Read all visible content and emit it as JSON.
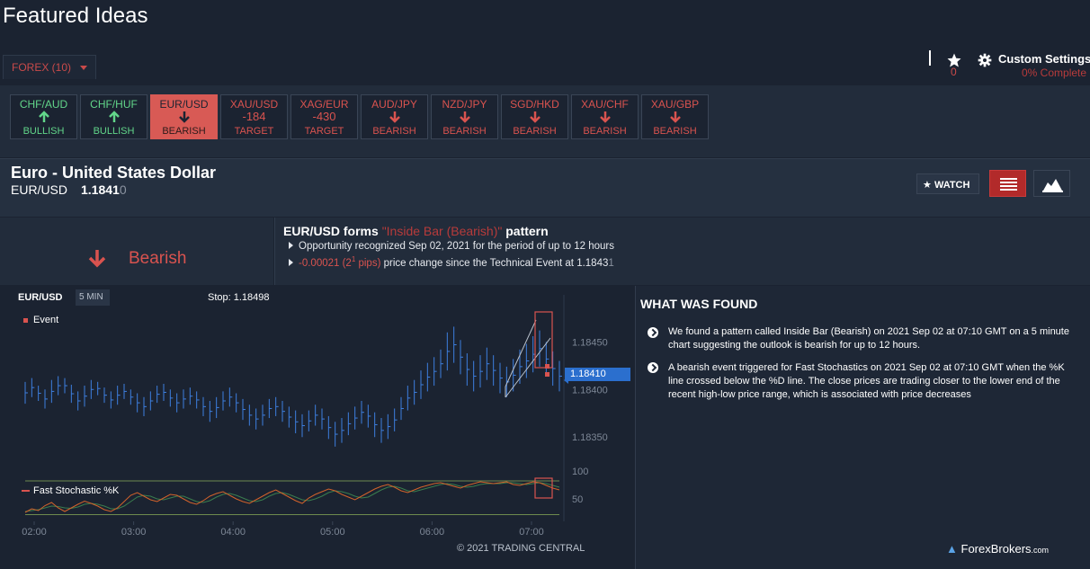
{
  "page": {
    "title": "Featured Ideas"
  },
  "filter": {
    "label": "FOREX (10)"
  },
  "header": {
    "favorites_count": "0",
    "custom_settings_label": "Custom Settings",
    "custom_settings_progress": "0% Complete"
  },
  "tabs": [
    {
      "name": "CHF/AUD",
      "mid": "",
      "label": "BULLISH",
      "dir": "up",
      "kind": "bull"
    },
    {
      "name": "CHF/HUF",
      "mid": "",
      "label": "BULLISH",
      "dir": "up",
      "kind": "bull"
    },
    {
      "name": "EUR/USD",
      "mid": "",
      "label": "BEARISH",
      "dir": "down",
      "kind": "active"
    },
    {
      "name": "XAU/USD",
      "mid": "-184",
      "label": "TARGET",
      "dir": "",
      "kind": "bear"
    },
    {
      "name": "XAG/EUR",
      "mid": "-430",
      "label": "TARGET",
      "dir": "",
      "kind": "bear"
    },
    {
      "name": "AUD/JPY",
      "mid": "",
      "label": "BEARISH",
      "dir": "down",
      "kind": "bear"
    },
    {
      "name": "NZD/JPY",
      "mid": "",
      "label": "BEARISH",
      "dir": "down",
      "kind": "bear"
    },
    {
      "name": "SGD/HKD",
      "mid": "",
      "label": "BEARISH",
      "dir": "down",
      "kind": "bear"
    },
    {
      "name": "XAU/CHF",
      "mid": "",
      "label": "BEARISH",
      "dir": "down",
      "kind": "bear"
    },
    {
      "name": "XAU/GBP",
      "mid": "",
      "label": "BEARISH",
      "dir": "down",
      "kind": "bear"
    }
  ],
  "instrument": {
    "name": "Euro - United States Dollar",
    "symbol": "EUR/USD",
    "price_main": "1.1841",
    "price_last": "0",
    "watch_label": "WATCH"
  },
  "sentiment": {
    "label": "Bearish"
  },
  "event": {
    "title_prefix": "EUR/USD forms ",
    "pattern": "\"Inside Bar (Bearish)\"",
    "title_suffix": " pattern",
    "line1": "Opportunity recognized Sep 02, 2021 for the period of up to 12 hours",
    "line2_change": "-0.00021 (2",
    "line2_sup": "1",
    "line2_pips": " pips)",
    "line2_rest": " price change since the Technical Event at 1.1843",
    "line2_last": "1"
  },
  "found": {
    "title": "WHAT WAS FOUND",
    "items": [
      "We found a pattern called Inside Bar (Bearish) on 2021 Sep 02 at 07:10 GMT on a 5 minute chart suggesting the outlook is bearish for up to 12 hours.",
      "A bearish event triggered for Fast Stochastics on 2021 Sep 02 at 07:10 GMT when the %K line crossed below the %D line. The close prices are trading closer to the lower end of the recent high-low price range, which is associated with price decreases"
    ]
  },
  "brand": {
    "name": "ForexBrokers",
    "suffix": ".com"
  },
  "chart_data": {
    "type": "line",
    "symbol": "EUR/USD",
    "interval": "5 MIN",
    "stop_label": "Stop: 1.18498",
    "event_legend": "Event",
    "indicator_legend": "Fast Stochastic %K",
    "copyright": "© 2021 TRADING CENTRAL",
    "current_price_tag": "1.18410",
    "price_ticks": [
      "1.18450",
      "1.18400",
      "1.18350"
    ],
    "price_tick_values": [
      1.1845,
      1.184,
      1.1835
    ],
    "indicator_ticks": [
      "100",
      "50"
    ],
    "time_ticks": [
      "02:00",
      "03:00",
      "04:00",
      "05:00",
      "06:00",
      "07:00"
    ],
    "ylim": [
      1.1832,
      1.1849
    ],
    "bars": [
      [
        1.18385,
        1.18408
      ],
      [
        1.18392,
        1.18412
      ],
      [
        1.18388,
        1.18404
      ],
      [
        1.1838,
        1.184
      ],
      [
        1.18386,
        1.1841
      ],
      [
        1.18394,
        1.18414
      ],
      [
        1.18396,
        1.18412
      ],
      [
        1.18386,
        1.18405
      ],
      [
        1.18378,
        1.18398
      ],
      [
        1.18382,
        1.18404
      ],
      [
        1.1839,
        1.1841
      ],
      [
        1.18394,
        1.18408
      ],
      [
        1.18386,
        1.18402
      ],
      [
        1.1838,
        1.18398
      ],
      [
        1.18384,
        1.18404
      ],
      [
        1.1839,
        1.18406
      ],
      [
        1.18384,
        1.184
      ],
      [
        1.18376,
        1.18396
      ],
      [
        1.18372,
        1.18392
      ],
      [
        1.18378,
        1.18398
      ],
      [
        1.18386,
        1.18404
      ],
      [
        1.18388,
        1.18406
      ],
      [
        1.18382,
        1.184
      ],
      [
        1.18376,
        1.18396
      ],
      [
        1.1838,
        1.184
      ],
      [
        1.18384,
        1.18402
      ],
      [
        1.1838,
        1.18398
      ],
      [
        1.18372,
        1.18392
      ],
      [
        1.18366,
        1.18388
      ],
      [
        1.1837,
        1.18392
      ],
      [
        1.18378,
        1.18398
      ],
      [
        1.18382,
        1.18402
      ],
      [
        1.18376,
        1.18396
      ],
      [
        1.18368,
        1.1839
      ],
      [
        1.18362,
        1.18384
      ],
      [
        1.18358,
        1.1838
      ],
      [
        1.18362,
        1.18384
      ],
      [
        1.1837,
        1.1839
      ],
      [
        1.18372,
        1.18392
      ],
      [
        1.18366,
        1.18388
      ],
      [
        1.1836,
        1.18382
      ],
      [
        1.18354,
        1.18378
      ],
      [
        1.1835,
        1.18374
      ],
      [
        1.18356,
        1.18378
      ],
      [
        1.18362,
        1.18384
      ],
      [
        1.18358,
        1.1838
      ],
      [
        1.18348,
        1.18372
      ],
      [
        1.1834,
        1.18366
      ],
      [
        1.18344,
        1.1837
      ],
      [
        1.18352,
        1.18376
      ],
      [
        1.18358,
        1.18382
      ],
      [
        1.18364,
        1.18388
      ],
      [
        1.1836,
        1.18384
      ],
      [
        1.1835,
        1.18376
      ],
      [
        1.18344,
        1.1837
      ],
      [
        1.18348,
        1.18374
      ],
      [
        1.18356,
        1.1838
      ],
      [
        1.18368,
        1.18392
      ],
      [
        1.18378,
        1.18404
      ],
      [
        1.18384,
        1.1841
      ],
      [
        1.1839,
        1.1842
      ],
      [
        1.18398,
        1.18428
      ],
      [
        1.18404,
        1.18434
      ],
      [
        1.18412,
        1.18442
      ],
      [
        1.1842,
        1.1846
      ],
      [
        1.18428,
        1.18466
      ],
      [
        1.18416,
        1.18452
      ],
      [
        1.18404,
        1.18438
      ],
      [
        1.18398,
        1.1843
      ],
      [
        1.18402,
        1.18436
      ],
      [
        1.1841,
        1.18444
      ],
      [
        1.18404,
        1.18436
      ],
      [
        1.18396,
        1.18428
      ],
      [
        1.18392,
        1.18424
      ],
      [
        1.18398,
        1.18432
      ],
      [
        1.18406,
        1.18442
      ],
      [
        1.18412,
        1.18448
      ],
      [
        1.18418,
        1.18456
      ],
      [
        1.18424,
        1.18462
      ],
      [
        1.18414,
        1.1845
      ],
      [
        1.18404,
        1.1844
      ],
      [
        1.18398,
        1.1843
      ]
    ],
    "stochastic_k": [
      20,
      28,
      24,
      35,
      42,
      30,
      22,
      30,
      38,
      45,
      40,
      34,
      26,
      22,
      30,
      44,
      58,
      64,
      56,
      48,
      44,
      52,
      60,
      58,
      50,
      42,
      38,
      46,
      56,
      62,
      66,
      58,
      50,
      44,
      40,
      48,
      56,
      64,
      70,
      62,
      54,
      46,
      40,
      52,
      60,
      66,
      72,
      68,
      60,
      54,
      48,
      56,
      64,
      72,
      78,
      82,
      76,
      68,
      64,
      70,
      76,
      80,
      84,
      86,
      82,
      78,
      74,
      80,
      84,
      88,
      86,
      84,
      86,
      88,
      82,
      80,
      84,
      88,
      86,
      80,
      74,
      70
    ],
    "stochastic_d": [
      22,
      24,
      26,
      30,
      34,
      33,
      30,
      29,
      32,
      38,
      40,
      38,
      34,
      28,
      28,
      34,
      44,
      54,
      58,
      56,
      50,
      48,
      52,
      56,
      56,
      50,
      44,
      42,
      46,
      54,
      60,
      62,
      58,
      52,
      46,
      44,
      48,
      56,
      62,
      64,
      60,
      54,
      48,
      46,
      50,
      56,
      64,
      68,
      66,
      62,
      56,
      52,
      54,
      62,
      70,
      76,
      78,
      74,
      68,
      66,
      70,
      74,
      78,
      82,
      84,
      82,
      78,
      76,
      78,
      82,
      84,
      84,
      84,
      86,
      86,
      84,
      82,
      84,
      86,
      84,
      80,
      76
    ]
  }
}
